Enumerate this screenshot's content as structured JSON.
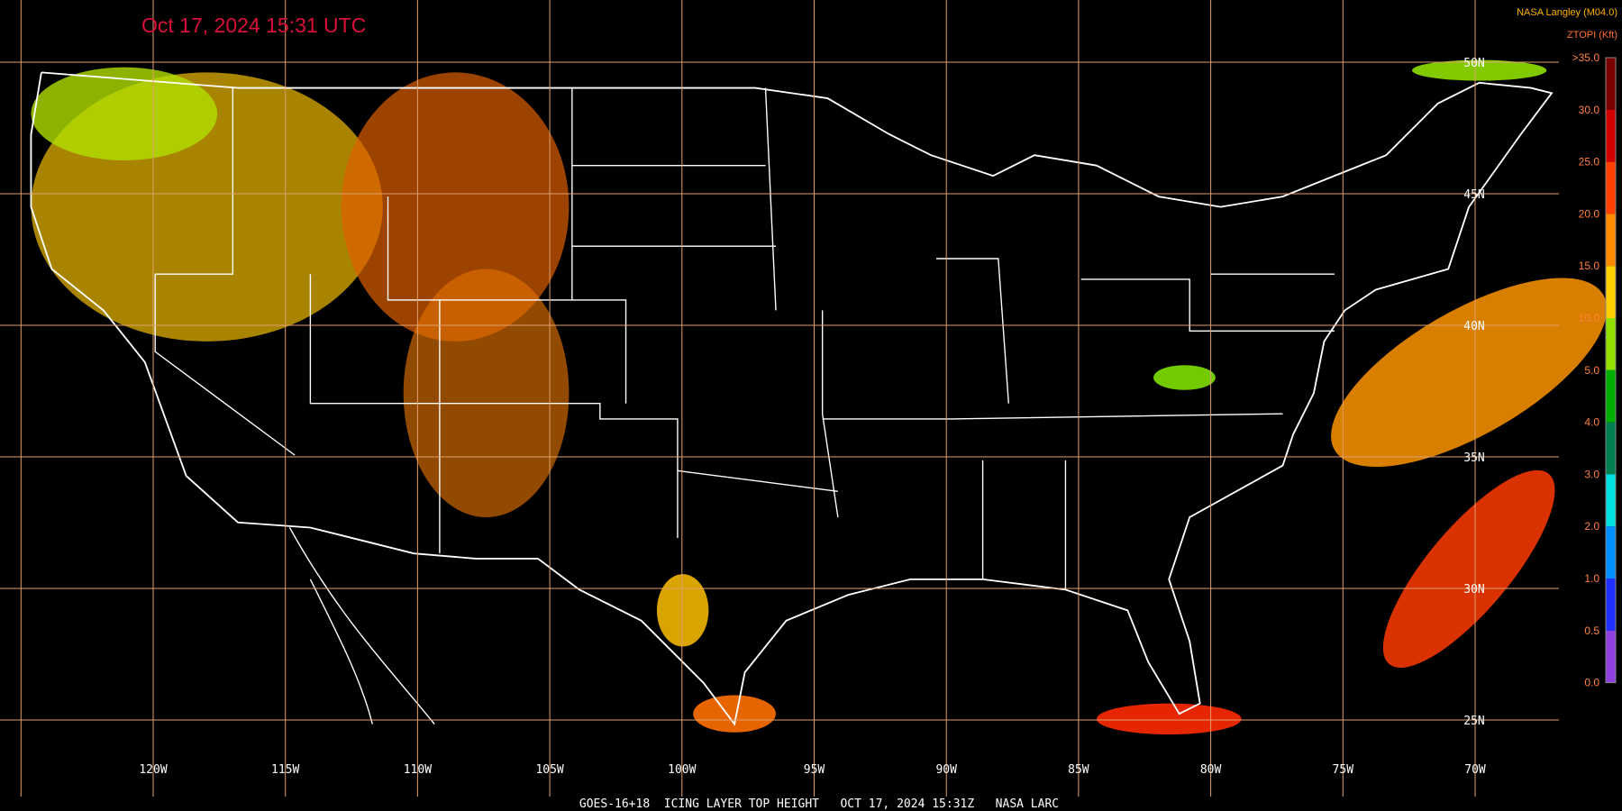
{
  "header": {
    "title": "Oct 17, 2024 15:31 UTC",
    "credit": "NASA Langley (M04.0)",
    "units": "ZTOPI (Kft)"
  },
  "legend": {
    "labels": [
      ">35.0",
      "30.0",
      "25.0",
      "20.0",
      "15.0",
      "10.0",
      "5.0",
      "4.0",
      "3.0",
      "2.0",
      "1.0",
      "0.5",
      "0.0"
    ],
    "colors": [
      "#7a0000",
      "#d40000",
      "#ff4000",
      "#ff8a00",
      "#ffd000",
      "#90e000",
      "#00b000",
      "#008050",
      "#00e0e0",
      "#0090ff",
      "#2030ff",
      "#9040e0"
    ]
  },
  "map": {
    "latitude_labels": [
      "50N",
      "45N",
      "40N",
      "35N",
      "30N",
      "25N"
    ],
    "longitude_labels": [
      "120W",
      "115W",
      "110W",
      "105W",
      "100W",
      "95W",
      "90W",
      "85W",
      "80W",
      "75W",
      "70W"
    ]
  },
  "footer": {
    "caption": "GOES-16+18  ICING LAYER TOP HEIGHT   OCT 17, 2024 15:31Z   NASA LARC"
  }
}
